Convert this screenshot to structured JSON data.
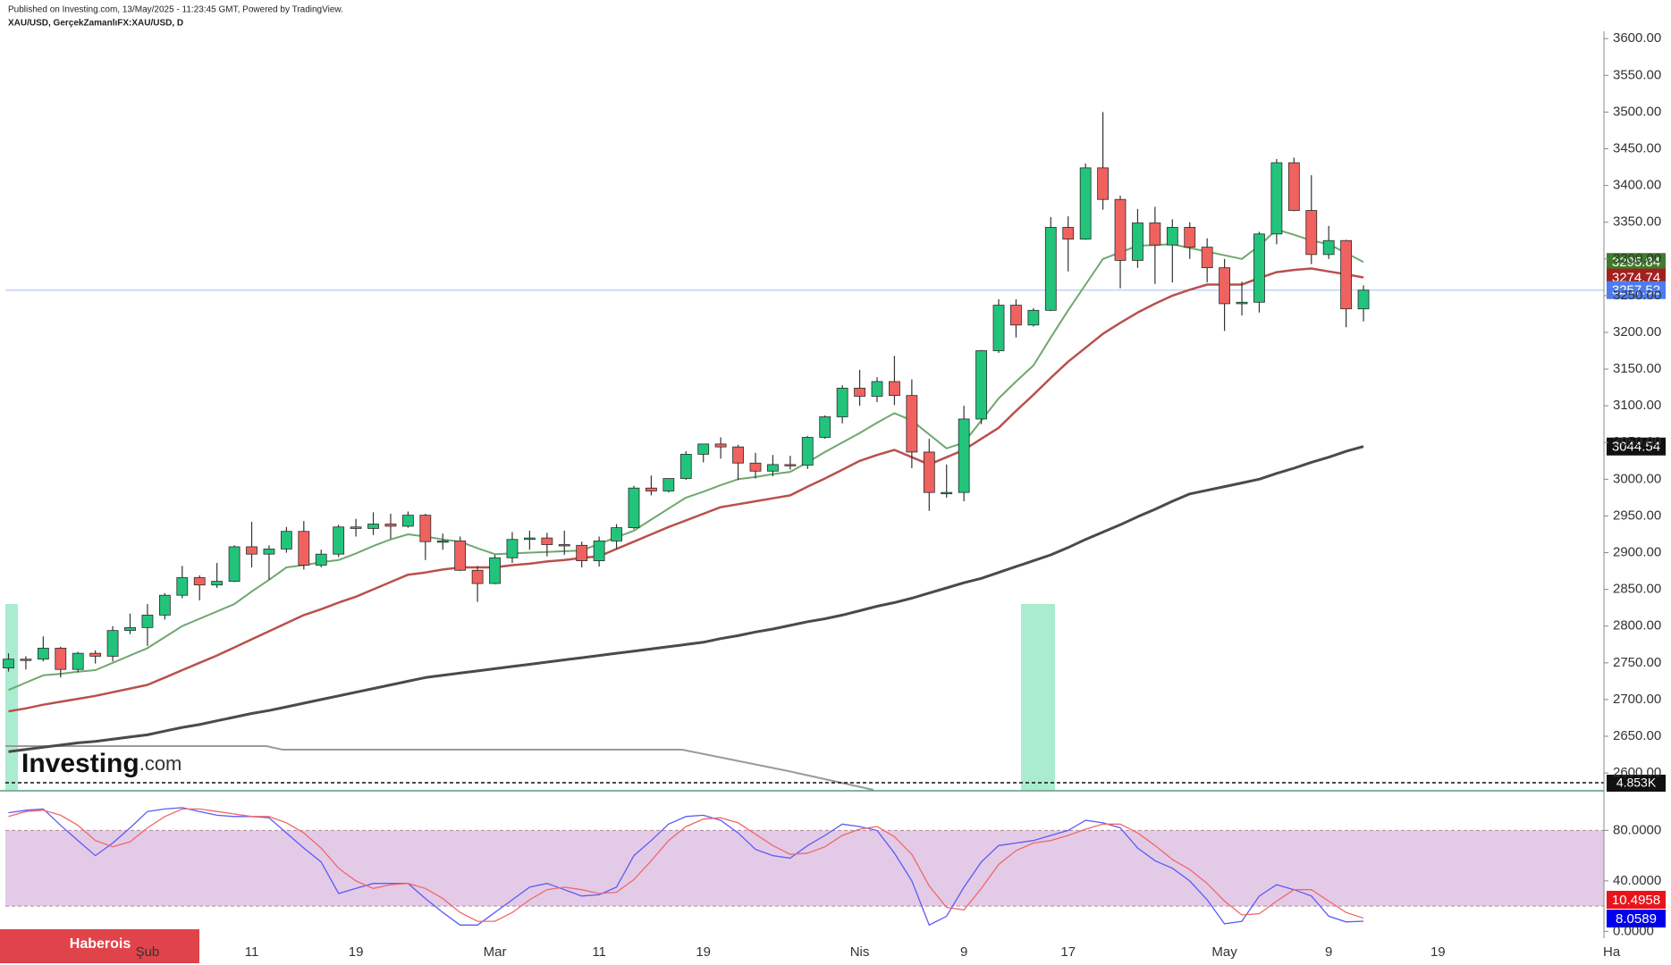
{
  "header": {
    "published_note": "Published on Investing.com, 13/May/2025 - 11:23:45 GMT, Powered by TradingView.",
    "symbol_label": "XAU/USD, GerçekZamanlıFX:XAU/USD, D"
  },
  "logo": {
    "main": "Investing",
    "suffix": ".com"
  },
  "watermark": "Haberois",
  "volume_label": "4.853K",
  "chart_data": [
    {
      "type": "candlestick",
      "categories": [
        "01-22",
        "01-23",
        "01-24",
        "01-27",
        "01-28",
        "01-29",
        "01-30",
        "01-31",
        "02-03",
        "02-04",
        "02-05",
        "02-06",
        "02-07",
        "02-10",
        "02-11",
        "02-12",
        "02-13",
        "02-14",
        "02-17",
        "02-18",
        "02-19",
        "02-20",
        "02-21",
        "02-24",
        "02-25",
        "02-26",
        "02-27",
        "02-28",
        "03-03",
        "03-04",
        "03-05",
        "03-06",
        "03-07",
        "03-10",
        "03-11",
        "03-12",
        "03-13",
        "03-14",
        "03-17",
        "03-18",
        "03-19",
        "03-20",
        "03-21",
        "03-24",
        "03-25",
        "03-26",
        "03-27",
        "03-28",
        "03-31",
        "04-01",
        "04-02",
        "04-03",
        "04-04",
        "04-07",
        "04-08",
        "04-09",
        "04-10",
        "04-11",
        "04-14",
        "04-15",
        "04-16",
        "04-17",
        "04-21",
        "04-22",
        "04-23",
        "04-24",
        "04-25",
        "04-28",
        "04-29",
        "04-30",
        "05-01",
        "05-02",
        "05-05",
        "05-06",
        "05-07",
        "05-08",
        "05-09",
        "05-12",
        "05-13"
      ],
      "open": [
        2743,
        2755,
        2755,
        2770,
        2741,
        2763,
        2759,
        2794,
        2798,
        2815,
        2842,
        2866,
        2856,
        2861,
        2908,
        2898,
        2905,
        2929,
        2883,
        2898,
        2935,
        2933,
        2939,
        2936,
        2951,
        2915,
        2916,
        2876,
        2858,
        2893,
        2918,
        2920,
        2911,
        2910,
        2889,
        2916,
        2934,
        2988,
        2984,
        3001,
        3034,
        3048,
        3044,
        3022,
        3011,
        3020,
        3019,
        3057,
        3085,
        3124,
        3113,
        3133,
        3114,
        3037,
        2982,
        2982,
        3082,
        3175,
        3237,
        3210,
        3230,
        3343,
        3327,
        3424,
        3381,
        3298,
        3349,
        3319,
        3343,
        3316,
        3288,
        3239,
        3241,
        3334,
        3431,
        3366,
        3306,
        3325,
        3232
      ],
      "high": [
        2763,
        2759,
        2786,
        2772,
        2765,
        2767,
        2800,
        2817,
        2830,
        2845,
        2882,
        2869,
        2886,
        2910,
        2942,
        2910,
        2935,
        2943,
        2904,
        2938,
        2946,
        2955,
        2953,
        2956,
        2953,
        2926,
        2922,
        2882,
        2897,
        2928,
        2930,
        2927,
        2930,
        2915,
        2922,
        2939,
        2991,
        3005,
        3001,
        3038,
        3048,
        3057,
        3047,
        3036,
        3033,
        3032,
        3059,
        3087,
        3128,
        3149,
        3139,
        3168,
        3136,
        3055,
        3020,
        3100,
        3176,
        3245,
        3245,
        3233,
        3357,
        3358,
        3430,
        3500,
        3386,
        3368,
        3371,
        3354,
        3350,
        3328,
        3300,
        3269,
        3337,
        3436,
        3438,
        3414,
        3345,
        3326,
        3264
      ],
      "low": [
        2738,
        2741,
        2752,
        2730,
        2737,
        2749,
        2752,
        2789,
        2773,
        2809,
        2838,
        2835,
        2852,
        2860,
        2880,
        2863,
        2900,
        2877,
        2880,
        2894,
        2922,
        2924,
        2919,
        2934,
        2890,
        2904,
        2875,
        2833,
        2857,
        2886,
        2904,
        2895,
        2897,
        2880,
        2881,
        2905,
        2932,
        2978,
        2982,
        2999,
        3023,
        3028,
        2999,
        3001,
        3004,
        3013,
        3014,
        3055,
        3076,
        3100,
        3105,
        3101,
        3015,
        2957,
        2975,
        2970,
        3075,
        3172,
        3193,
        3208,
        3229,
        3283,
        3326,
        3367,
        3260,
        3288,
        3266,
        3268,
        3300,
        3268,
        3202,
        3223,
        3227,
        3320,
        3365,
        3293,
        3300,
        3207,
        3215
      ],
      "close": [
        2755,
        2754,
        2770,
        2741,
        2763,
        2759,
        2794,
        2798,
        2815,
        2842,
        2866,
        2856,
        2861,
        2908,
        2898,
        2905,
        2929,
        2883,
        2898,
        2935,
        2933,
        2939,
        2936,
        2951,
        2915,
        2916,
        2876,
        2858,
        2893,
        2918,
        2920,
        2911,
        2910,
        2889,
        2916,
        2934,
        2988,
        2984,
        3001,
        3034,
        3048,
        3044,
        3022,
        3011,
        3020,
        3019,
        3057,
        3085,
        3124,
        3113,
        3133,
        3114,
        3037,
        2982,
        2982,
        3082,
        3175,
        3237,
        3210,
        3230,
        3343,
        3327,
        3424,
        3381,
        3298,
        3349,
        3319,
        3343,
        3316,
        3288,
        3239,
        3241,
        3334,
        3431,
        3366,
        3306,
        3325,
        3232,
        3257.52
      ],
      "up_color": "#22c47c",
      "down_color": "#f0625f",
      "last_price_color": "#4d7cf0",
      "series": [
        {
          "color": "#6fa86f",
          "tag_color": "#3f7d2a",
          "width": 2,
          "values": [
            2713,
            2723,
            2733,
            2735,
            2738,
            2740,
            2750,
            2760,
            2770,
            2785,
            2800,
            2810,
            2820,
            2830,
            2847,
            2863,
            2880,
            2883,
            2887,
            2890,
            2899,
            2909,
            2918,
            2925,
            2922,
            2918,
            2915,
            2906,
            2898,
            2899,
            2900,
            2901,
            2902,
            2903,
            2912,
            2921,
            2930,
            2945,
            2960,
            2975,
            2983,
            2992,
            3000,
            3003,
            3007,
            3010,
            3023,
            3037,
            3050,
            3063,
            3077,
            3090,
            3080,
            3061,
            3042,
            3050,
            3080,
            3110,
            3133,
            3155,
            3193,
            3230,
            3265,
            3300,
            3309,
            3318,
            3319,
            3320,
            3315,
            3310,
            3305,
            3300,
            3318,
            3340,
            3333,
            3325,
            3320,
            3308,
            3295.84
          ]
        },
        {
          "color": "#b9504c",
          "tag_color": "#a3201e",
          "width": 2.5,
          "values": [
            2684,
            2688,
            2693,
            2697,
            2701,
            2705,
            2710,
            2715,
            2720,
            2730,
            2740,
            2750,
            2760,
            2771,
            2782,
            2793,
            2804,
            2815,
            2823,
            2832,
            2840,
            2850,
            2860,
            2870,
            2873,
            2877,
            2880,
            2880,
            2880,
            2883,
            2885,
            2888,
            2890,
            2893,
            2895,
            2905,
            2915,
            2925,
            2935,
            2944,
            2953,
            2962,
            2966,
            2970,
            2974,
            2978,
            2990,
            3001,
            3013,
            3025,
            3033,
            3040,
            3030,
            3020,
            3030,
            3040,
            3055,
            3070,
            3093,
            3115,
            3138,
            3160,
            3179,
            3198,
            3213,
            3227,
            3239,
            3250,
            3258,
            3265,
            3265,
            3265,
            3274,
            3282,
            3285,
            3287,
            3283,
            3279,
            3274.74
          ]
        },
        {
          "color": "#4a4a4a",
          "tag_color": "#111111",
          "width": 3,
          "values": [
            2629,
            2632,
            2635,
            2638,
            2641,
            2643,
            2646,
            2649,
            2652,
            2657,
            2662,
            2666,
            2671,
            2676,
            2681,
            2685,
            2690,
            2695,
            2700,
            2705,
            2710,
            2715,
            2720,
            2725,
            2730,
            2733,
            2736,
            2739,
            2742,
            2745,
            2748,
            2751,
            2754,
            2757,
            2760,
            2763,
            2766,
            2769,
            2772,
            2775,
            2778,
            2783,
            2787,
            2792,
            2796,
            2801,
            2806,
            2810,
            2815,
            2821,
            2827,
            2832,
            2838,
            2845,
            2852,
            2859,
            2865,
            2873,
            2881,
            2889,
            2897,
            2907,
            2918,
            2928,
            2938,
            2949,
            2959,
            2970,
            2980,
            2985,
            2990,
            2995,
            3000,
            3008,
            3015,
            3023,
            3030,
            3038,
            3044.54
          ]
        }
      ],
      "ylim": [
        2577,
        3610
      ],
      "yticks": [
        {
          "value": 2600,
          "label": "2600.00"
        },
        {
          "value": 2650,
          "label": "2650.00"
        },
        {
          "value": 2700,
          "label": "2700.00"
        },
        {
          "value": 2750,
          "label": "2750.00"
        },
        {
          "value": 2800,
          "label": "2800.00"
        },
        {
          "value": 2850,
          "label": "2850.00"
        },
        {
          "value": 2900,
          "label": "2900.00"
        },
        {
          "value": 2950,
          "label": "2950.00"
        },
        {
          "value": 3000,
          "label": "3000.00"
        },
        {
          "value": 3050,
          "label": "3050.00"
        },
        {
          "value": 3100,
          "label": "3100.00"
        },
        {
          "value": 3150,
          "label": "3150.00"
        },
        {
          "value": 3200,
          "label": "3200.00"
        },
        {
          "value": 3250,
          "label": "3250.00"
        },
        {
          "value": 3300,
          "label": "3300.00"
        },
        {
          "value": 3350,
          "label": "3350.00"
        },
        {
          "value": 3400,
          "label": "3400.00"
        },
        {
          "value": 3450,
          "label": "3450.00"
        },
        {
          "value": 3500,
          "label": "3500.00"
        },
        {
          "value": 3550,
          "label": "3550.00"
        },
        {
          "value": 3600,
          "label": "3600.00"
        }
      ],
      "xticks": [
        {
          "value": "02-03",
          "label": "Şub"
        },
        {
          "value": "02-11",
          "label": "11"
        },
        {
          "value": "02-19",
          "label": "19"
        },
        {
          "value": "03-03",
          "label": "Mar"
        },
        {
          "value": "03-11",
          "label": "11"
        },
        {
          "value": "03-19",
          "label": "19"
        },
        {
          "value": "04-01",
          "label": "Nis"
        },
        {
          "value": "04-09",
          "label": "9"
        },
        {
          "value": "04-17",
          "label": "17"
        },
        {
          "value": "05-01",
          "label": "May"
        },
        {
          "value": "05-09",
          "label": "9"
        },
        {
          "value": "05-19",
          "label": "19"
        },
        {
          "value": "06-02",
          "label": "Ha"
        }
      ]
    },
    {
      "type": "line",
      "series": [
        {
          "color": "#5b5bf5",
          "tag_color": "#0000ee",
          "values": [
            94,
            96,
            97,
            84,
            72,
            60,
            70,
            82,
            95,
            97,
            98,
            95,
            92,
            91,
            91,
            90,
            78,
            66,
            55,
            30,
            34,
            38,
            38,
            38,
            26,
            15,
            5,
            5,
            15,
            25,
            35,
            38,
            33,
            28,
            29,
            35,
            60,
            72,
            85,
            91,
            92,
            88,
            78,
            65,
            60,
            58,
            68,
            76,
            85,
            83,
            80,
            62,
            40,
            5,
            12,
            35,
            55,
            68,
            70,
            72,
            76,
            80,
            88,
            86,
            82,
            66,
            56,
            50,
            40,
            25,
            6,
            8,
            28,
            37,
            33,
            28,
            12,
            7.5,
            8.0589
          ]
        },
        {
          "color": "#f06868",
          "tag_color": "#e8141b",
          "values": [
            91,
            95,
            96,
            92,
            84,
            72,
            67,
            71,
            82,
            91,
            97,
            97,
            95,
            93,
            91,
            91,
            86,
            78,
            66,
            50,
            40,
            34,
            37,
            38,
            34,
            26,
            15,
            8,
            8,
            15,
            25,
            33,
            35,
            33,
            30,
            31,
            41,
            56,
            72,
            83,
            89,
            90,
            86,
            77,
            68,
            61,
            62,
            67,
            76,
            81,
            83,
            75,
            61,
            36,
            19,
            17,
            34,
            53,
            64,
            70,
            72,
            76,
            81,
            85,
            85,
            78,
            68,
            57,
            49,
            38,
            24,
            13,
            14,
            24,
            33,
            33,
            24,
            15,
            10.4958
          ]
        }
      ],
      "band": [
        20,
        80
      ],
      "band_color": "#e3cbe8",
      "ylim": [
        -4,
        110
      ],
      "yticks": [
        {
          "value": 80,
          "label": "80.0000"
        },
        {
          "value": 40,
          "label": "40.0000"
        },
        {
          "value": 0,
          "label": "0.0000"
        }
      ]
    }
  ]
}
